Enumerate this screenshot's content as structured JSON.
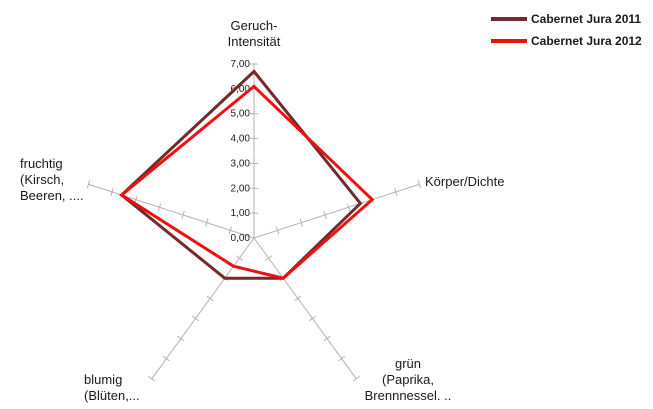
{
  "chart_data": {
    "type": "radar",
    "categories": [
      "Geruch-\nIntensität",
      "Körper/Dichte",
      "grün\n(Paprika,\nBrennnessel. ..",
      "blumig\n(Blüten,...",
      "fruchtig\n(Kirsch,\nBeeren, ...."
    ],
    "ticks": [
      "0,00",
      "1,00",
      "2,00",
      "3,00",
      "4,00",
      "5,00",
      "6,00",
      "7,00"
    ],
    "rmax": 7,
    "grid": false,
    "legend_position": "top-right",
    "series": [
      {
        "name": "Cabernet Jura 2011",
        "color": "#722a2a",
        "values": [
          6.7,
          4.5,
          2.0,
          2.0,
          5.6
        ]
      },
      {
        "name": "Cabernet Jura 2012",
        "color": "#ee1111",
        "values": [
          6.1,
          5.0,
          2.0,
          1.4,
          5.6
        ]
      }
    ]
  }
}
